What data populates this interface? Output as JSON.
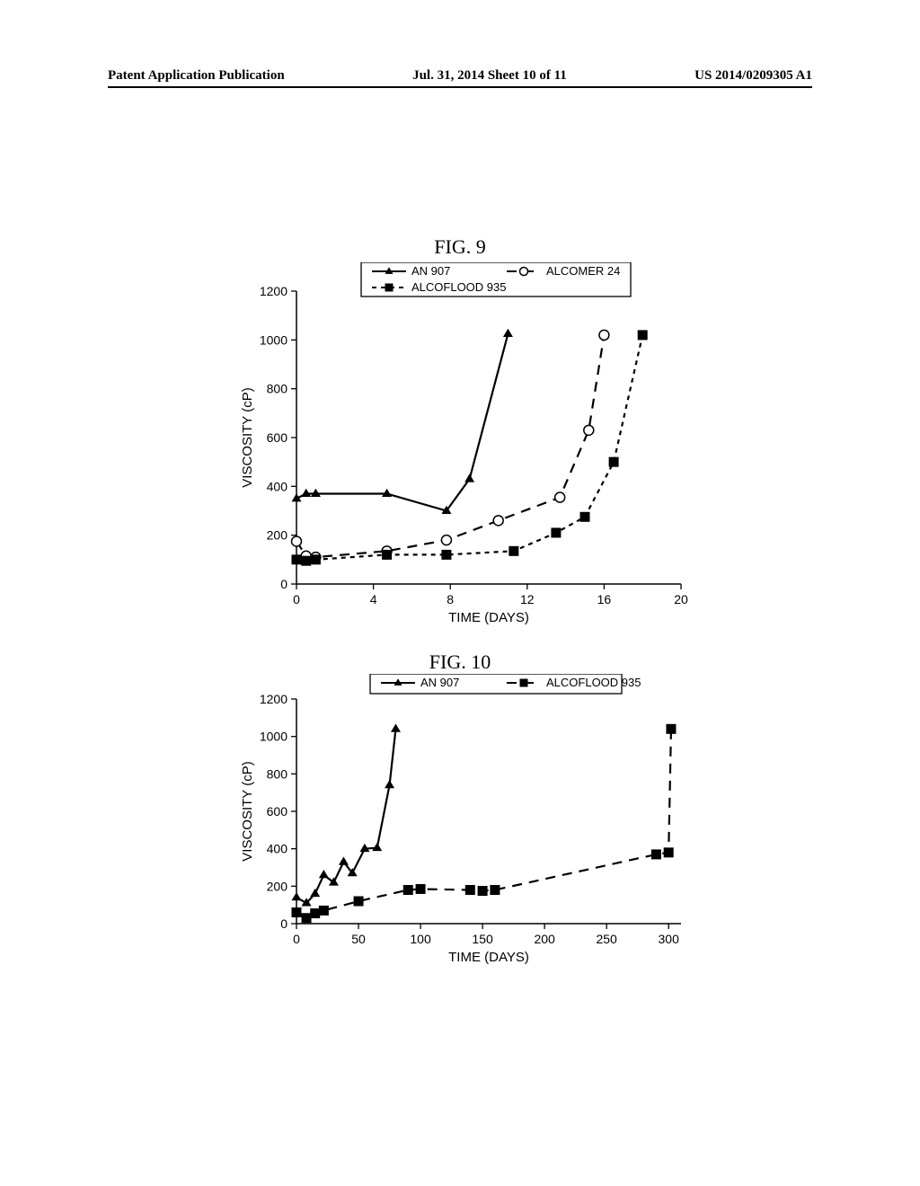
{
  "header": {
    "left": "Patent Application Publication",
    "center": "Jul. 31, 2014  Sheet 10 of 11",
    "right": "US 2014/0209305 A1"
  },
  "fig9": {
    "title": "FIG. 9",
    "type": "line",
    "xlabel": "TIME (DAYS)",
    "ylabel": "VISCOSITY (cP)",
    "xlim": [
      0,
      20
    ],
    "ylim": [
      0,
      1200
    ],
    "xtick_step": 4,
    "ytick_step": 200,
    "background_color": "#ffffff",
    "axis_color": "#000000",
    "label_fontsize": 15,
    "tick_fontsize": 14,
    "legend_fontsize": 13,
    "series": [
      {
        "name": "AN 907",
        "marker": "triangle-filled",
        "dash": "solid",
        "color": "#000000",
        "x": [
          0,
          0.5,
          1,
          4.7,
          7.8,
          9,
          11
        ],
        "y": [
          350,
          370,
          370,
          370,
          300,
          430,
          1025
        ]
      },
      {
        "name": "ALCOMER 24",
        "marker": "circle-open",
        "dash": "dash",
        "color": "#000000",
        "x": [
          0,
          0.5,
          1,
          4.7,
          7.8,
          10.5,
          13.7,
          15.2,
          16
        ],
        "y": [
          175,
          115,
          110,
          135,
          180,
          260,
          355,
          630,
          1020
        ]
      },
      {
        "name": "ALCOFLOOD 935",
        "marker": "square-filled",
        "dash": "shortdash",
        "color": "#000000",
        "x": [
          0,
          0.5,
          1,
          4.7,
          7.8,
          11.3,
          13.5,
          15,
          16.5,
          18
        ],
        "y": [
          100,
          95,
          100,
          120,
          120,
          135,
          210,
          275,
          500,
          1020
        ]
      }
    ]
  },
  "fig10": {
    "title": "FIG. 10",
    "type": "line",
    "xlabel": "TIME (DAYS)",
    "ylabel": "VISCOSITY (cP)",
    "xlim": [
      0,
      310
    ],
    "ylim": [
      0,
      1200
    ],
    "xticks": [
      0,
      50,
      100,
      150,
      200,
      250,
      300
    ],
    "ytick_step": 200,
    "background_color": "#ffffff",
    "axis_color": "#000000",
    "label_fontsize": 15,
    "tick_fontsize": 14,
    "legend_fontsize": 13,
    "series": [
      {
        "name": "AN 907",
        "marker": "triangle-filled",
        "dash": "solid",
        "color": "#000000",
        "x": [
          0,
          8,
          15,
          22,
          30,
          38,
          45,
          55,
          65,
          75,
          80
        ],
        "y": [
          140,
          110,
          160,
          260,
          220,
          330,
          270,
          400,
          405,
          740,
          1040
        ]
      },
      {
        "name": "ALCOFLOOD 935",
        "marker": "square-filled",
        "dash": "dash",
        "color": "#000000",
        "x": [
          0,
          8,
          15,
          22,
          50,
          90,
          100,
          140,
          150,
          160,
          290,
          300,
          302
        ],
        "y": [
          60,
          30,
          55,
          70,
          120,
          180,
          185,
          180,
          175,
          180,
          370,
          380,
          1040
        ]
      }
    ]
  }
}
